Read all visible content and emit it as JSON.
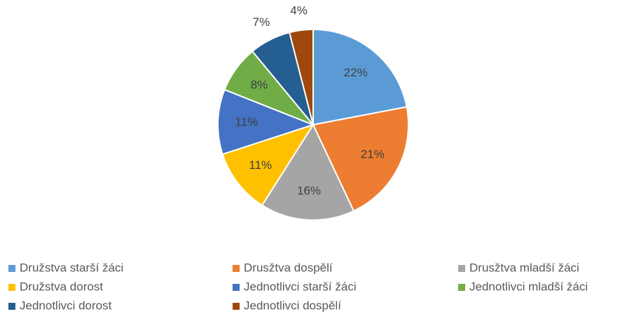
{
  "chart_data": {
    "type": "pie",
    "categories": [
      "Družstva starší žáci",
      "Drusžtva dospělí",
      "Drusžtva mladší žáci",
      "Družstva dorost",
      "Jednotlivci starší žáci",
      "Jednotlivci mladší žáci",
      "Jednotlivci dorost",
      "Jednotlivci dospělí"
    ],
    "values": [
      22,
      21,
      16,
      11,
      11,
      8,
      7,
      4
    ],
    "value_labels": [
      "22%",
      "21%",
      "16%",
      "11%",
      "11%",
      "8%",
      "7%",
      "4%"
    ],
    "colors": [
      "#5b9bd5",
      "#ed7d31",
      "#a5a5a5",
      "#ffc000",
      "#4472c4",
      "#70ad47",
      "#255e91",
      "#9e480e"
    ],
    "legend": "bottom"
  }
}
